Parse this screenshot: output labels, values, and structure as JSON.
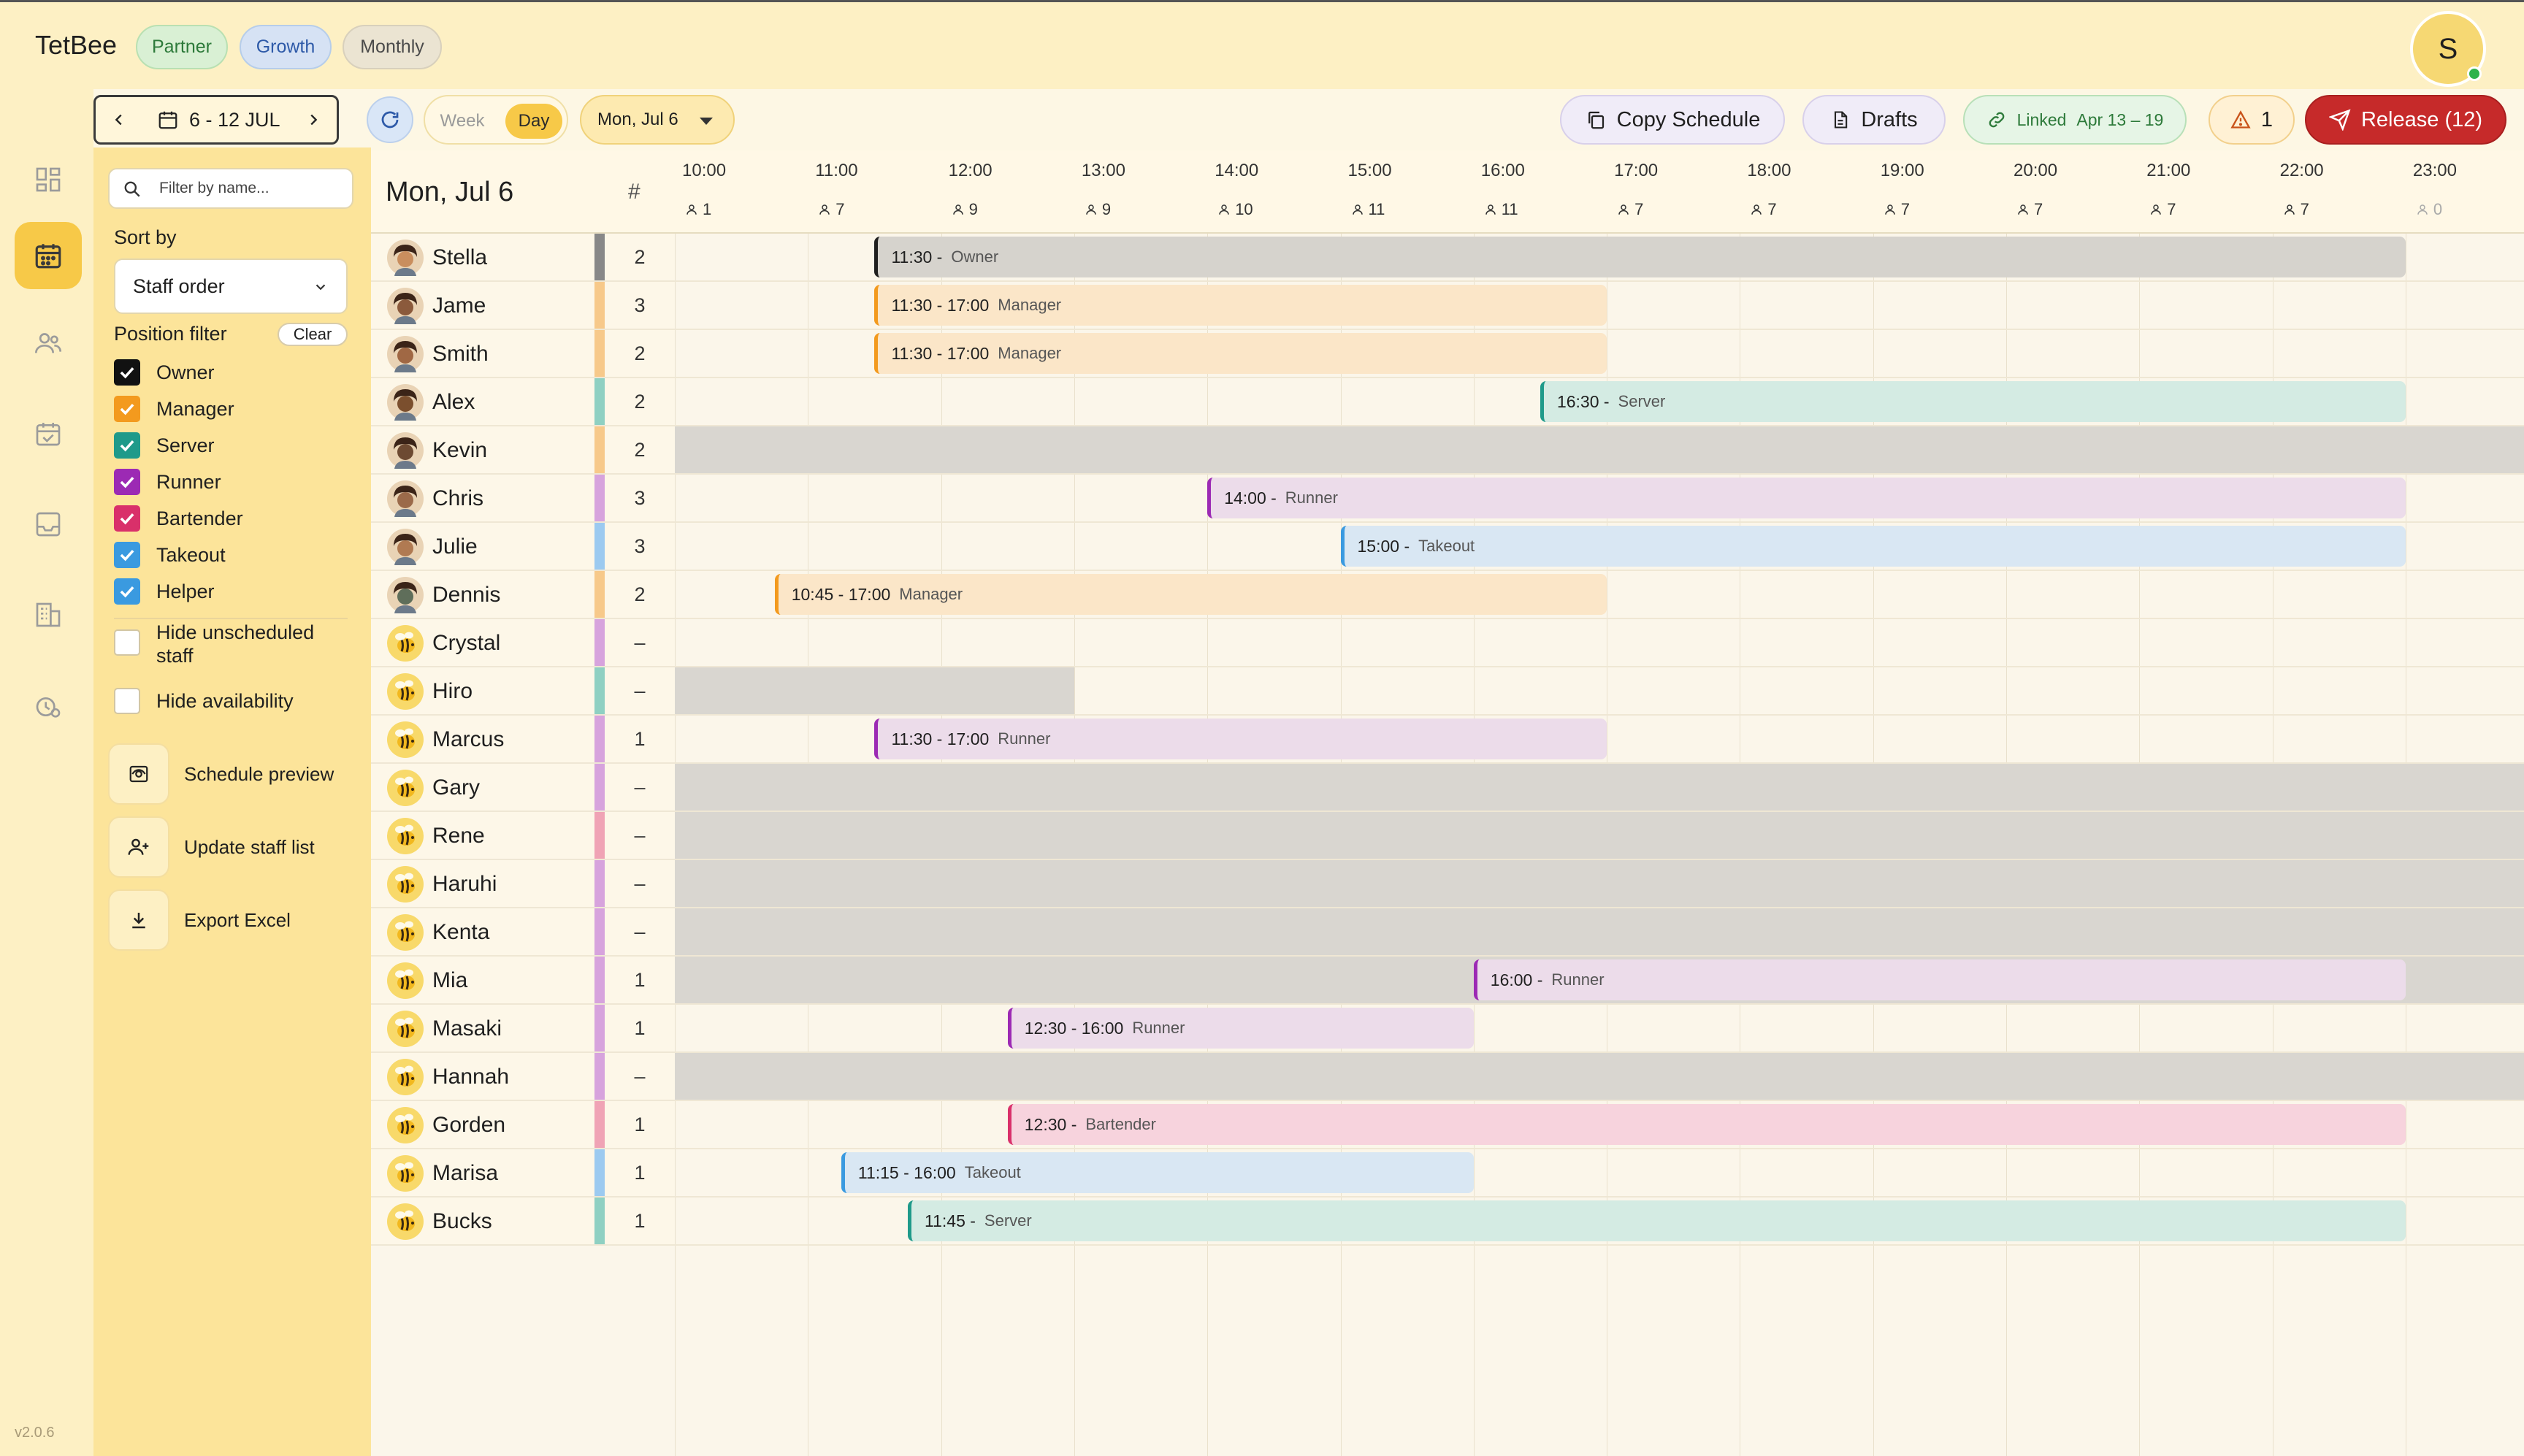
{
  "app": {
    "brand": "TetBee",
    "pills": {
      "partner": "Partner",
      "growth": "Growth",
      "monthly": "Monthly"
    },
    "user_initial": "S",
    "version": "v2.0.6"
  },
  "rail": {
    "items": [
      "dashboard-icon",
      "calendar-icon",
      "people-icon",
      "event-check-icon",
      "inbox-icon",
      "building-icon",
      "clock-settings-icon"
    ]
  },
  "toolbar": {
    "week_range": "6 - 12 JUL",
    "view_week": "Week",
    "view_day": "Day",
    "selected_date": "Mon, Jul 6",
    "copy_schedule": "Copy Schedule",
    "drafts": "Drafts",
    "linked_label": "Linked",
    "linked_range": "Apr 13 – 19",
    "warnings": "1",
    "release": "Release (12)"
  },
  "filters": {
    "search_placeholder": "Filter by name...",
    "sort_by_label": "Sort by",
    "sort_value": "Staff order",
    "position_filter_label": "Position filter",
    "clear_label": "Clear",
    "positions": [
      {
        "label": "Owner",
        "color": "#111111",
        "checked": true
      },
      {
        "label": "Manager",
        "color": "#f39a1e",
        "checked": true
      },
      {
        "label": "Server",
        "color": "#1f9a8a",
        "checked": true
      },
      {
        "label": "Runner",
        "color": "#9c2ab4",
        "checked": true
      },
      {
        "label": "Bartender",
        "color": "#d9306a",
        "checked": true
      },
      {
        "label": "Takeout",
        "color": "#3a9ae0",
        "checked": true
      },
      {
        "label": "Helper",
        "color": "#3a9ae0",
        "checked": true
      }
    ],
    "hide_unscheduled_1": "Hide unscheduled",
    "hide_unscheduled_2": "staff",
    "hide_availability": "Hide availability",
    "actions": {
      "schedule_preview": "Schedule preview",
      "update_staff": "Update staff list",
      "export_excel": "Export Excel"
    }
  },
  "grid": {
    "date_label": "Mon, Jul 6",
    "count_header": "#",
    "hours": [
      {
        "label": "10:00",
        "count": "1"
      },
      {
        "label": "11:00",
        "count": "7"
      },
      {
        "label": "12:00",
        "count": "9"
      },
      {
        "label": "13:00",
        "count": "9"
      },
      {
        "label": "14:00",
        "count": "10"
      },
      {
        "label": "15:00",
        "count": "11"
      },
      {
        "label": "16:00",
        "count": "11"
      },
      {
        "label": "17:00",
        "count": "7"
      },
      {
        "label": "18:00",
        "count": "7"
      },
      {
        "label": "19:00",
        "count": "7"
      },
      {
        "label": "20:00",
        "count": "7"
      },
      {
        "label": "21:00",
        "count": "7"
      },
      {
        "label": "22:00",
        "count": "7"
      },
      {
        "label": "23:00",
        "count": "0"
      }
    ]
  },
  "positions_colors": {
    "Owner": {
      "border": "#1f1f1f",
      "bg": "#d6d3cd",
      "bar": "#888888"
    },
    "Manager": {
      "border": "#f39a1e",
      "bg": "#fbe6c8",
      "bar": "#f7c98a"
    },
    "Server": {
      "border": "#1f9a8a",
      "bg": "#d4ebe3",
      "bar": "#8fd0c2"
    },
    "Runner": {
      "border": "#9c2ab4",
      "bg": "#ecdcea",
      "bar": "#d7a3dd"
    },
    "Takeout": {
      "border": "#3a9ae0",
      "bg": "#d9e7f3",
      "bar": "#9ccaf0"
    },
    "Bartender": {
      "border": "#d9306a",
      "bg": "#f7d3dd",
      "bar": "#f0a3b5"
    }
  },
  "staff": [
    {
      "name": "Stella",
      "count": "2",
      "bar": "#888888",
      "face": "#c98e5e",
      "unavail": [],
      "shift": {
        "start": 11.5,
        "end": 23.0,
        "time": "11:30 -",
        "role": "Owner",
        "pos": "Owner"
      }
    },
    {
      "name": "Jame",
      "count": "3",
      "bar": "#f7c98a",
      "face": "#8b5a3c",
      "unavail": [],
      "shift": {
        "start": 11.5,
        "end": 17.0,
        "time": "11:30 - 17:00",
        "role": "Manager",
        "pos": "Manager"
      }
    },
    {
      "name": "Smith",
      "count": "2",
      "bar": "#f7c98a",
      "face": "#a06844",
      "unavail": [],
      "shift": {
        "start": 11.5,
        "end": 17.0,
        "time": "11:30 - 17:00",
        "role": "Manager",
        "pos": "Manager"
      }
    },
    {
      "name": "Alex",
      "count": "2",
      "bar": "#8fd0c2",
      "face": "#7b4f2e",
      "unavail": [],
      "shift": {
        "start": 16.5,
        "end": 23.0,
        "time": "16:30 -",
        "role": "Server",
        "pos": "Server"
      }
    },
    {
      "name": "Kevin",
      "count": "2",
      "bar": "#f7c98a",
      "face": "#6d4a32",
      "unavail": [
        [
          10.0,
          24.0
        ]
      ],
      "shift": null
    },
    {
      "name": "Chris",
      "count": "3",
      "bar": "#d7a3dd",
      "face": "#9b6a4a",
      "unavail": [],
      "shift": {
        "start": 14.0,
        "end": 23.0,
        "time": "14:00 -",
        "role": "Runner",
        "pos": "Runner"
      }
    },
    {
      "name": "Julie",
      "count": "3",
      "bar": "#9ccaf0",
      "face": "#b07a52",
      "unavail": [],
      "shift": {
        "start": 15.0,
        "end": 23.0,
        "time": "15:00 -",
        "role": "Takeout",
        "pos": "Takeout"
      }
    },
    {
      "name": "Dennis",
      "count": "2",
      "bar": "#f7c98a",
      "face": "#5f6e5a",
      "unavail": [],
      "shift": {
        "start": 10.75,
        "end": 17.0,
        "time": "10:45 - 17:00",
        "role": "Manager",
        "pos": "Manager"
      }
    },
    {
      "name": "Crystal",
      "count": "–",
      "bar": "#d7a3dd",
      "face": "bee",
      "unavail": [],
      "shift": null
    },
    {
      "name": "Hiro",
      "count": "–",
      "bar": "#8fd0c2",
      "face": "bee",
      "unavail": [
        [
          10.0,
          13.0
        ]
      ],
      "shift": null
    },
    {
      "name": "Marcus",
      "count": "1",
      "bar": "#d7a3dd",
      "face": "bee",
      "unavail": [],
      "shift": {
        "start": 11.5,
        "end": 17.0,
        "time": "11:30 - 17:00",
        "role": "Runner",
        "pos": "Runner"
      }
    },
    {
      "name": "Gary",
      "count": "–",
      "bar": "#d7a3dd",
      "face": "bee",
      "unavail": [
        [
          10.0,
          24.0
        ]
      ],
      "shift": null
    },
    {
      "name": "Rene",
      "count": "–",
      "bar": "#f0a3b5",
      "face": "bee",
      "unavail": [
        [
          10.0,
          24.0
        ]
      ],
      "shift": null
    },
    {
      "name": "Haruhi",
      "count": "–",
      "bar": "#d7a3dd",
      "face": "bee",
      "unavail": [
        [
          10.0,
          24.0
        ]
      ],
      "shift": null
    },
    {
      "name": "Kenta",
      "count": "–",
      "bar": "#d7a3dd",
      "face": "bee",
      "unavail": [
        [
          10.0,
          24.0
        ]
      ],
      "shift": null
    },
    {
      "name": "Mia",
      "count": "1",
      "bar": "#d7a3dd",
      "face": "bee",
      "unavail": [
        [
          10.0,
          24.0
        ]
      ],
      "shift": {
        "start": 16.0,
        "end": 23.0,
        "time": "16:00 -",
        "role": "Runner",
        "pos": "Runner"
      }
    },
    {
      "name": "Masaki",
      "count": "1",
      "bar": "#d7a3dd",
      "face": "bee",
      "unavail": [],
      "shift": {
        "start": 12.5,
        "end": 16.0,
        "time": "12:30 - 16:00",
        "role": "Runner",
        "pos": "Runner"
      }
    },
    {
      "name": "Hannah",
      "count": "–",
      "bar": "#d7a3dd",
      "face": "bee",
      "unavail": [
        [
          10.0,
          24.0
        ]
      ],
      "shift": null
    },
    {
      "name": "Gorden",
      "count": "1",
      "bar": "#f0a3b5",
      "face": "bee",
      "unavail": [],
      "shift": {
        "start": 12.5,
        "end": 23.0,
        "time": "12:30 -",
        "role": "Bartender",
        "pos": "Bartender"
      }
    },
    {
      "name": "Marisa",
      "count": "1",
      "bar": "#9ccaf0",
      "face": "bee",
      "unavail": [],
      "shift": {
        "start": 11.25,
        "end": 16.0,
        "time": "11:15 - 16:00",
        "role": "Takeout",
        "pos": "Takeout"
      }
    },
    {
      "name": "Bucks",
      "count": "1",
      "bar": "#8fd0c2",
      "face": "bee",
      "unavail": [],
      "shift": {
        "start": 11.75,
        "end": 23.0,
        "time": "11:45 -",
        "role": "Server",
        "pos": "Server"
      }
    }
  ]
}
